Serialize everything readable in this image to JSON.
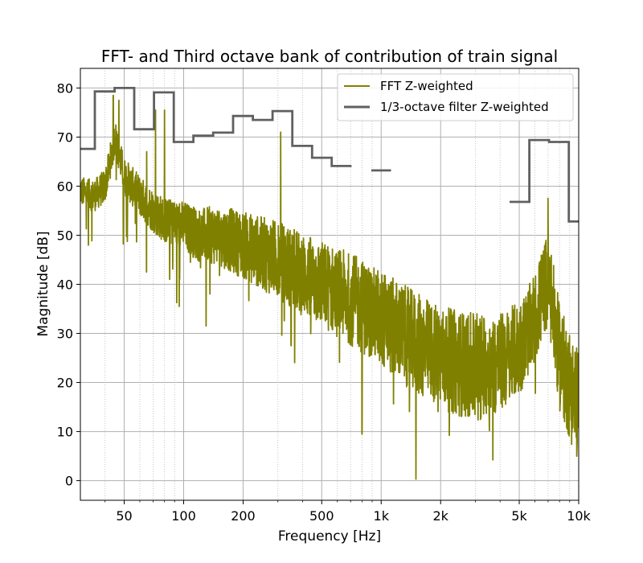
{
  "chart_data": {
    "type": "line",
    "title": "FFT- and Third octave bank of contribution of train signal",
    "xlabel": "Frequency [Hz]",
    "ylabel": "Magnitude [dB]",
    "x_scale": "log",
    "xlim": [
      30,
      10000
    ],
    "ylim": [
      -4,
      84
    ],
    "x_ticks": [
      {
        "value": 50,
        "label": "50"
      },
      {
        "value": 100,
        "label": "100"
      },
      {
        "value": 200,
        "label": "200"
      },
      {
        "value": 500,
        "label": "500"
      },
      {
        "value": 1000,
        "label": "1k"
      },
      {
        "value": 2000,
        "label": "2k"
      },
      {
        "value": 5000,
        "label": "5k"
      },
      {
        "value": 10000,
        "label": "10k"
      }
    ],
    "y_ticks": [
      0,
      10,
      20,
      30,
      40,
      50,
      60,
      70,
      80
    ],
    "grid": true,
    "legend_position": "top-right",
    "series": [
      {
        "name": "FFT Z-weighted",
        "color": "#808000",
        "style": "line",
        "trend": [
          [
            30,
            59
          ],
          [
            35,
            58
          ],
          [
            40,
            60
          ],
          [
            45,
            70
          ],
          [
            50,
            62
          ],
          [
            60,
            58
          ],
          [
            70,
            55
          ],
          [
            80,
            53
          ],
          [
            100,
            52
          ],
          [
            120,
            50
          ],
          [
            150,
            50
          ],
          [
            200,
            48
          ],
          [
            300,
            45
          ],
          [
            400,
            42
          ],
          [
            500,
            40
          ],
          [
            700,
            37
          ],
          [
            1000,
            33
          ],
          [
            1500,
            28
          ],
          [
            2000,
            25
          ],
          [
            3000,
            23
          ],
          [
            4000,
            24
          ],
          [
            5000,
            27
          ],
          [
            6000,
            33
          ],
          [
            6800,
            40
          ],
          [
            7200,
            38
          ],
          [
            8000,
            25
          ],
          [
            10000,
            15
          ]
        ],
        "spread": [
          [
            30,
            3
          ],
          [
            100,
            5
          ],
          [
            300,
            8
          ],
          [
            1000,
            10
          ],
          [
            3000,
            11
          ],
          [
            6000,
            9
          ],
          [
            10000,
            12
          ]
        ],
        "peaks": [
          [
            44,
            78.5
          ],
          [
            47,
            77.5
          ],
          [
            65,
            67
          ],
          [
            72,
            75.5
          ],
          [
            80,
            75.5
          ],
          [
            310,
            71
          ],
          [
            7000,
            57.5
          ]
        ],
        "dips": [
          [
            85,
            41
          ],
          [
            95,
            35.5
          ],
          [
            130,
            31.5
          ],
          [
            350,
            27.5
          ],
          [
            800,
            9.5
          ],
          [
            1500,
            0.3
          ]
        ]
      },
      {
        "name": "1/3-octave filter Z-weighted",
        "color": "#606060",
        "style": "step",
        "bands": [
          {
            "f_lo": 30,
            "f_hi": 35.5,
            "value": 67.6
          },
          {
            "f_lo": 35.5,
            "f_hi": 44.7,
            "value": 79.3
          },
          {
            "f_lo": 44.7,
            "f_hi": 56.2,
            "value": 80.0
          },
          {
            "f_lo": 56.2,
            "f_hi": 70.8,
            "value": 71.6
          },
          {
            "f_lo": 70.8,
            "f_hi": 89.1,
            "value": 79.1
          },
          {
            "f_lo": 89.1,
            "f_hi": 112,
            "value": 69.0
          },
          {
            "f_lo": 112,
            "f_hi": 141,
            "value": 70.3
          },
          {
            "f_lo": 141,
            "f_hi": 178,
            "value": 70.9
          },
          {
            "f_lo": 178,
            "f_hi": 224,
            "value": 74.3
          },
          {
            "f_lo": 224,
            "f_hi": 282,
            "value": 73.5
          },
          {
            "f_lo": 282,
            "f_hi": 355,
            "value": 75.3
          },
          {
            "f_lo": 355,
            "f_hi": 447,
            "value": 68.2
          },
          {
            "f_lo": 447,
            "f_hi": 562,
            "value": 65.8
          },
          {
            "f_lo": 562,
            "f_hi": 708,
            "value": 64.1
          },
          {
            "f_lo": 891,
            "f_hi": 1122,
            "value": 63.2
          },
          {
            "f_lo": 4467,
            "f_hi": 5623,
            "value": 56.8
          },
          {
            "f_lo": 5623,
            "f_hi": 7079,
            "value": 69.4
          },
          {
            "f_lo": 7079,
            "f_hi": 8913,
            "value": 69.0
          },
          {
            "f_lo": 8913,
            "f_hi": 10000,
            "value": 52.8
          }
        ]
      }
    ]
  }
}
